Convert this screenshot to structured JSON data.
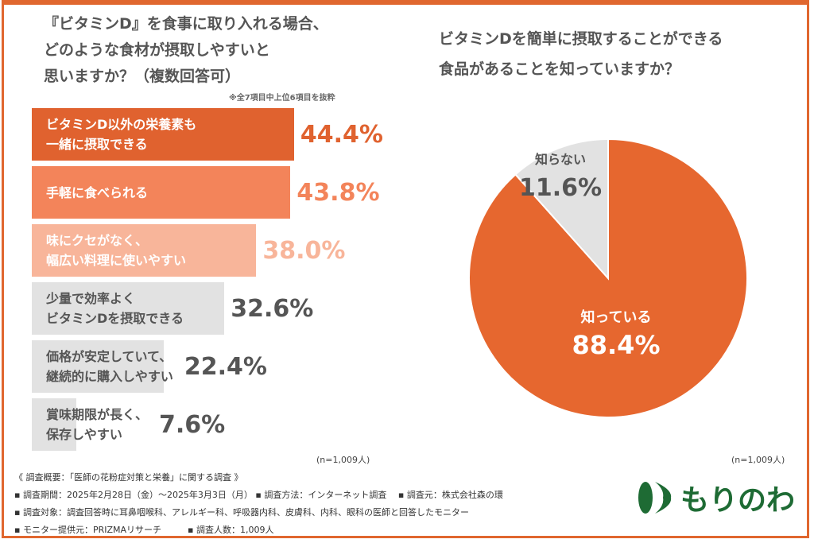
{
  "chart_data": [
    {
      "type": "bar",
      "orientation": "horizontal",
      "title": "『ビタミンD』を食事に取り入れる場合、どのような食材が摂取しやすいと思いますか？（複数回答可）",
      "title_lines": [
        "『ビタミンD』を食事に取り入れる場合、",
        "どのような食材が摂取しやすいと",
        "思いますか？（複数回答可）"
      ],
      "note": "※全7項目中上位6項目を抜粋",
      "categories": [
        "ビタミンD以外の栄養素も\n一緒に摂取できる",
        "手軽に食べられる",
        "味にクセがなく、\n幅広い料理に使いやすい",
        "少量で効率よく\nビタミンDを摂取できる",
        "価格が安定していて、\n継続的に購入しやすい",
        "賞味期限が長く、\n保存しやすい"
      ],
      "values": [
        44.4,
        43.8,
        38.0,
        32.6,
        22.4,
        7.6
      ],
      "value_labels": [
        "44.4%",
        "43.8%",
        "38.0%",
        "32.6%",
        "22.4%",
        "7.6%"
      ],
      "bar_colors": [
        "#e0622f",
        "#f3845a",
        "#f8b59a",
        "#e2e2e2",
        "#e2e2e2",
        "#e2e2e2"
      ],
      "label_colors": [
        "#ffffff",
        "#ffffff",
        "#ffffff",
        "#555555",
        "#555555",
        "#555555"
      ],
      "value_colors": [
        "#e0622f",
        "#f3845a",
        "#f8b59a",
        "#555555",
        "#555555",
        "#555555"
      ],
      "xlim": [
        0,
        100
      ],
      "sample": "(n=1,009人)"
    },
    {
      "type": "pie",
      "title_lines": [
        "ビタミンDを簡単に摂取することができる",
        "食品があることを知っていますか？"
      ],
      "slices": [
        {
          "label": "知っている",
          "value": 88.4,
          "value_label": "88.4%",
          "color": "#e6672f"
        },
        {
          "label": "知らない",
          "value": 11.6,
          "value_label": "11.6%",
          "color": "#e2e2e2"
        }
      ],
      "sample": "(n=1,009人)"
    }
  ],
  "footer": {
    "lines": [
      "《 調査概要：「医師の花粉症対策と栄養」に関する調査 》",
      "▪ 調査期間：2025年2月28日（金）～2025年3月3日（月） ▪ 調査方法：インターネット調査　 ▪ 調査元：株式会社森の環",
      "▪ 調査対象：調査回答時に耳鼻咽喉科、アレルギー科、呼吸器内科、皮膚科、内科、眼科の医師と回答したモニター",
      "▪ モニター提供元：PRIZMAリサーチ　　　▪ 調査人数：1,009人"
    ]
  },
  "logo": {
    "text": "もりのわ",
    "color": "#1e6b34"
  }
}
